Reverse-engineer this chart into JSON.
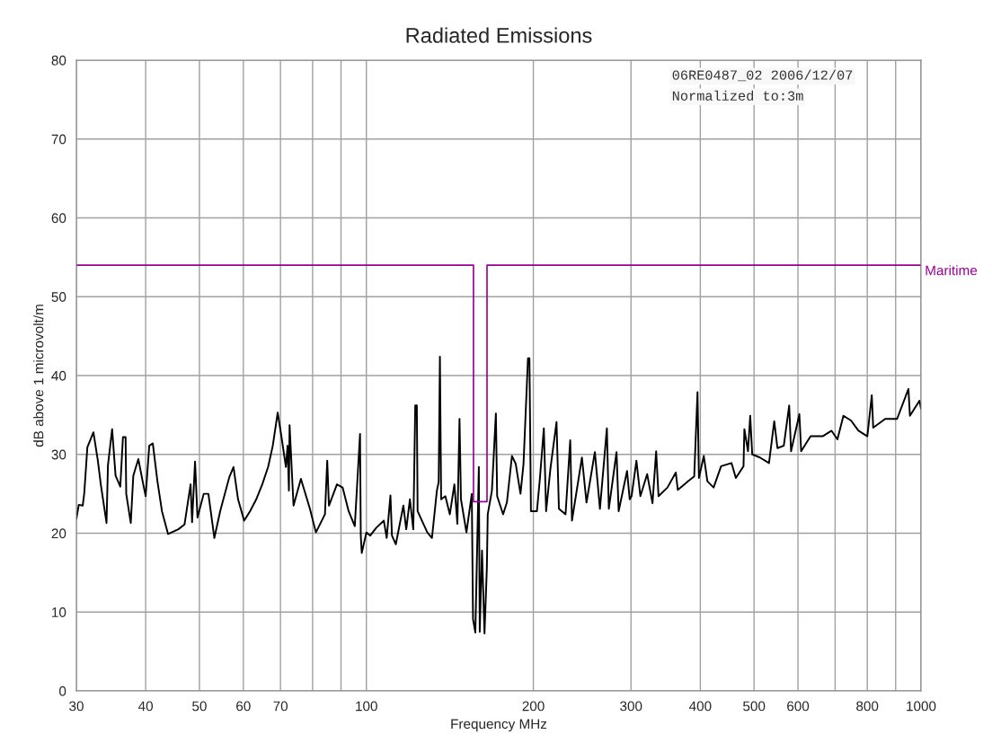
{
  "chart_data": {
    "type": "line",
    "title": "Radiated Emissions",
    "xlabel": "Frequency MHz",
    "ylabel": "dB above 1 microvolt/m",
    "log": "x",
    "grid": true,
    "legend": false,
    "marker": "none",
    "line_style": "solid",
    "xlim": [
      30,
      1000
    ],
    "ylim": [
      0,
      80
    ],
    "xticks": [
      30,
      40,
      50,
      60,
      70,
      {
        "value": 80,
        "label": null
      },
      {
        "value": 90,
        "label": null
      },
      100,
      200,
      300,
      400,
      500,
      600,
      {
        "value": 700,
        "label": null
      },
      800,
      {
        "value": 900,
        "label": null
      },
      1000
    ],
    "yticks": [
      0,
      10,
      20,
      30,
      40,
      50,
      60,
      70,
      80
    ],
    "annotations": [
      "06RE0487_02 2006/12/07",
      "Normalized to:3m"
    ],
    "series": [
      {
        "color": "#000000",
        "x": [
          30.0,
          30.3,
          30.8,
          31.0,
          31.4,
          32.2,
          32.8,
          33.2,
          34.0,
          34.2,
          34.8,
          35.3,
          36.0,
          36.4,
          36.8,
          36.9,
          37.6,
          38.0,
          38.8,
          39.6,
          40.0,
          40.6,
          41.2,
          42.0,
          42.8,
          43.9,
          45.8,
          47.0,
          48.2,
          48.5,
          49.1,
          49.6,
          50.9,
          51.9,
          53.2,
          54.5,
          56.6,
          57.6,
          58.7,
          60.2,
          61.7,
          63.3,
          64.9,
          66.5,
          67.8,
          69.2,
          70.3,
          71.6,
          72.1,
          72.5,
          72.7,
          73.9,
          76.2,
          79.1,
          81.1,
          84.2,
          85.0,
          85.6,
          88.5,
          90.6,
          92.9,
          95.3,
          97.4,
          97.7,
          98.1,
          100.0,
          101.6,
          104.2,
          107.5,
          108.8,
          110.5,
          111.2,
          113.0,
          116.6,
          118.0,
          119.8,
          121.5,
          122.5,
          123.3,
          123.7,
          125.9,
          128.8,
          131.3,
          134.0,
          135.0,
          135.7,
          136.4,
          138.8,
          141.4,
          144.1,
          145.9,
          147.2,
          148.1,
          151.5,
          154.9,
          155.7,
          157.2,
          158.6,
          159.5,
          160.1,
          161.6,
          163.3,
          164.9,
          165.5,
          168.4,
          171.2,
          172.1,
          176.4,
          179.2,
          183.0,
          185.9,
          189.6,
          192.0,
          195.6,
          196.8,
          198.0,
          203.0,
          205.5,
          208.9,
          210.9,
          214.7,
          220.2,
          222.4,
          228.6,
          233.1,
          234.8,
          244.7,
          249.4,
          258.2,
          263.7,
          271.4,
          273.6,
          282.5,
          285.0,
          295.1,
          298.4,
          300.7,
          306.8,
          311.9,
          320.8,
          328,
          333,
          336.3,
          349.0,
          361.3,
          364.3,
          380.4,
          390.0,
          395.4,
          397.7,
          405.8,
          411.9,
          422.7,
          436.1,
          455.4,
          463.6,
          478.6,
          480.3,
          487.6,
          492.1,
          496.2,
          512.4,
          532.0,
          543.7,
          551,
          565.7,
          578.5,
          583,
          603.5,
          608,
          632.3,
          664.6,
          689.7,
          706.8,
          724.6,
          747.6,
          771.4,
          800.2,
          815.2,
          820,
          861.8,
          905.5,
          949.1,
          955,
          993.7,
          1000
        ],
        "values": [
          21.8,
          23.6,
          23.5,
          25.1,
          30.9,
          32.8,
          29.2,
          26.2,
          21.3,
          28.6,
          33.2,
          27.3,
          25.9,
          32.2,
          32.2,
          25.0,
          21.3,
          27.3,
          29.4,
          26.2,
          24.7,
          31.1,
          31.4,
          26.6,
          22.8,
          19.9,
          20.5,
          21.1,
          26.2,
          21.4,
          29.1,
          22.0,
          25.0,
          25.0,
          19.4,
          22.8,
          27.1,
          28.4,
          24.3,
          21.6,
          22.8,
          24.3,
          26.2,
          28.4,
          31.1,
          35.3,
          32.2,
          28.4,
          31.1,
          25.4,
          33.7,
          23.5,
          26.9,
          23.1,
          20.1,
          22.4,
          29.2,
          23.5,
          26.2,
          25.8,
          22.8,
          20.9,
          32.6,
          19.7,
          17.5,
          20.1,
          19.7,
          20.7,
          21.6,
          19.4,
          24.8,
          19.7,
          18.6,
          23.5,
          20.5,
          24.3,
          20.5,
          36.2,
          36.2,
          22.8,
          21.6,
          20.1,
          19.4,
          25.4,
          26.5,
          42.4,
          24.3,
          24.7,
          22.4,
          26.2,
          21.2,
          34.5,
          24.3,
          20.1,
          25.0,
          9.1,
          7.4,
          20.1,
          28.4,
          7.5,
          17.8,
          7.3,
          15.6,
          22.4,
          25.4,
          35.2,
          24.7,
          22.4,
          23.9,
          29.8,
          28.8,
          25.0,
          28.8,
          42.2,
          42.2,
          22.8,
          22.8,
          26.9,
          33.3,
          22.8,
          28.2,
          34.1,
          23.1,
          22.4,
          31.8,
          21.6,
          29.6,
          23.9,
          30.3,
          23.1,
          33.3,
          23.1,
          30.3,
          22.8,
          27.9,
          24.3,
          24.7,
          29.2,
          24.7,
          27.5,
          23.8,
          30.4,
          24.7,
          25.8,
          27.7,
          25.5,
          26.6,
          27.2,
          37.9,
          27.0,
          29.8,
          26.6,
          25.8,
          28.5,
          28.9,
          27.0,
          28.5,
          33.2,
          30.4,
          34.9,
          30.0,
          29.6,
          28.9,
          34.2,
          30.8,
          31.1,
          36.2,
          30.4,
          35.1,
          30.4,
          32.3,
          32.3,
          33.0,
          31.9,
          34.9,
          34.3,
          33.0,
          32.3,
          37.5,
          33.4,
          34.5,
          34.5,
          38.3,
          34.9,
          36.8,
          35.8
        ]
      },
      {
        "name": "Maritime",
        "color": "#990099",
        "x": [
          30,
          156,
          156,
          165,
          165,
          1000
        ],
        "values": [
          54,
          54,
          24,
          24,
          54,
          54
        ]
      }
    ]
  }
}
